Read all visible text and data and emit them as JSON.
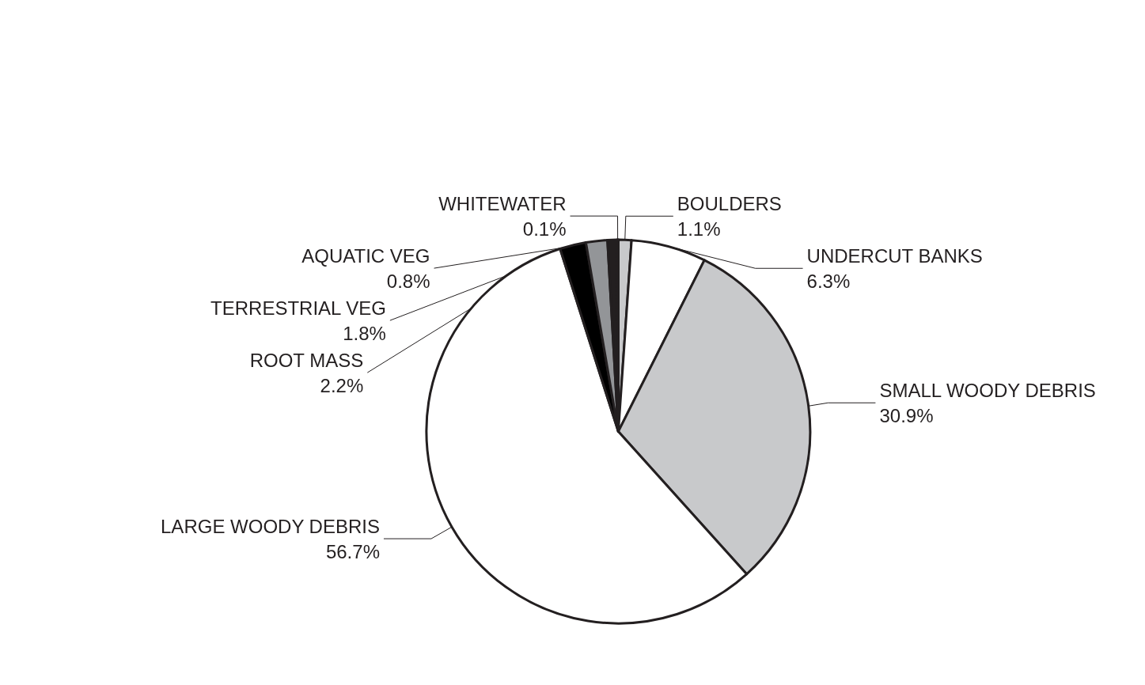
{
  "chart_data": {
    "type": "pie",
    "categories": [
      "BOULDERS",
      "UNDERCUT BANKS",
      "SMALL WOODY DEBRIS",
      "LARGE WOODY DEBRIS",
      "ROOT MASS",
      "TERRESTRIAL VEG",
      "AQUATIC VEG",
      "WHITEWATER"
    ],
    "values": [
      1.1,
      6.3,
      30.9,
      56.7,
      2.2,
      1.8,
      0.8,
      0.1
    ],
    "value_labels": [
      "1.1%",
      "6.3%",
      "30.9%",
      "56.7%",
      "2.2%",
      "1.8%",
      "0.8%",
      "0.1%"
    ],
    "colors": [
      "#c8c9cb",
      "#ffffff",
      "#c8c9cb",
      "#ffffff",
      "#000000",
      "#939598",
      "#231f20",
      "#ffffff"
    ]
  }
}
